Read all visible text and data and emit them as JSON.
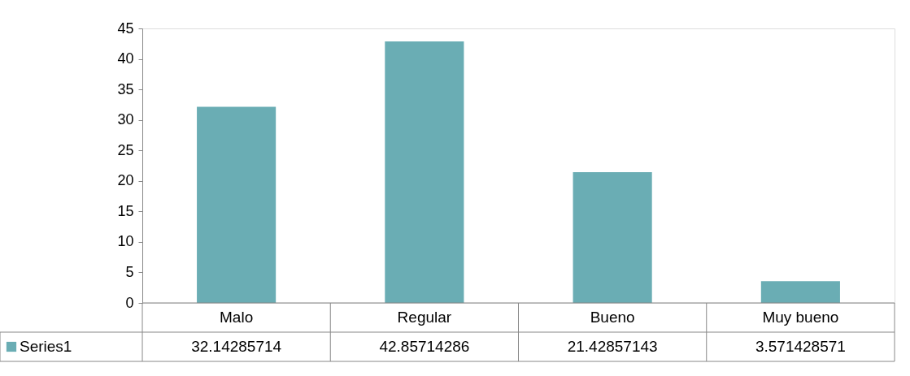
{
  "chart_data": {
    "type": "bar",
    "categories": [
      "Malo",
      "Regular",
      "Bueno",
      "Muy bueno"
    ],
    "series": [
      {
        "name": "Series1",
        "color": "#6aadb4",
        "values": [
          32.14285714,
          42.85714286,
          21.42857143,
          3.571428571
        ]
      }
    ],
    "ylim": [
      0,
      45
    ],
    "yticks": [
      0,
      5,
      10,
      15,
      20,
      25,
      30,
      35,
      40,
      45
    ],
    "grid": false,
    "legend": "bottom left",
    "data_labels": true
  }
}
